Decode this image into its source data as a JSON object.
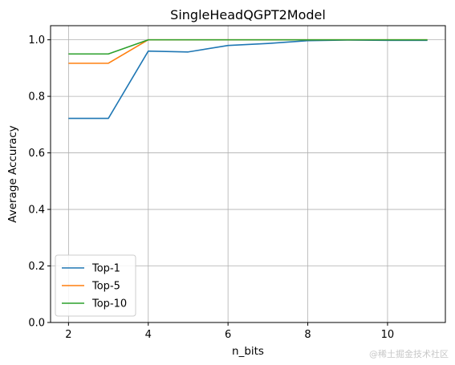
{
  "chart_data": {
    "type": "line",
    "title": "SingleHeadQGPT2Model",
    "xlabel": "n_bits",
    "ylabel": "Average Accuracy",
    "x": [
      2,
      3,
      4,
      5,
      6,
      7,
      8,
      9,
      10,
      11
    ],
    "xticks": [
      "2",
      "4",
      "6",
      "8",
      "10"
    ],
    "yticks": [
      "0.0",
      "0.2",
      "0.4",
      "0.6",
      "0.8",
      "1.0"
    ],
    "xlim": [
      1.55,
      11.45
    ],
    "ylim": [
      0,
      1.05
    ],
    "grid": true,
    "legend_position": "lower-left",
    "series": [
      {
        "name": "Top-1",
        "color": "#1f77b4",
        "values": [
          0.722,
          0.722,
          0.96,
          0.957,
          0.98,
          0.987,
          0.997,
          0.999,
          0.998,
          0.998
        ]
      },
      {
        "name": "Top-5",
        "color": "#ff7f0e",
        "values": [
          0.917,
          0.917,
          1.0,
          1.0,
          1.0,
          1.0,
          1.0,
          1.0,
          1.0,
          1.0
        ]
      },
      {
        "name": "Top-10",
        "color": "#2ca02c",
        "values": [
          0.95,
          0.95,
          1.0,
          1.0,
          1.0,
          1.0,
          1.0,
          1.0,
          1.0,
          1.0
        ]
      }
    ]
  },
  "watermark": "@稀土掘金技术社区"
}
